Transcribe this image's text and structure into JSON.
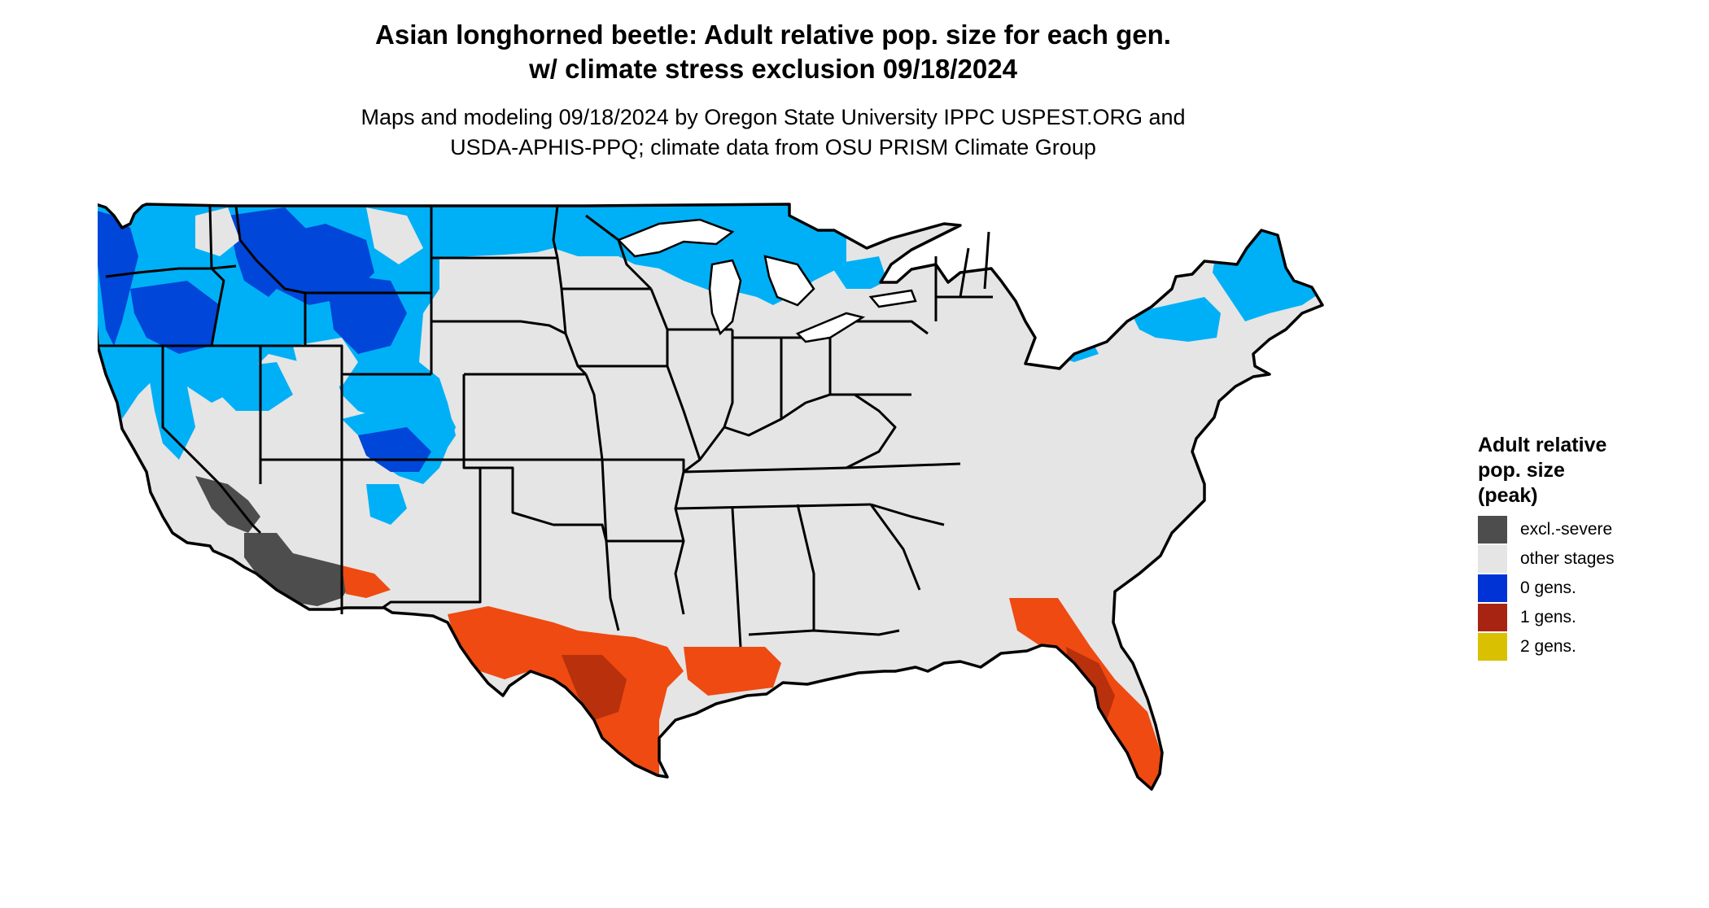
{
  "title": {
    "line1": "Asian longhorned beetle: Adult relative pop. size for each gen.",
    "line2": "w/ climate stress exclusion 09/18/2024"
  },
  "subtitle": {
    "line1": "Maps and modeling 09/18/2024 by Oregon State University IPPC USPEST.ORG and",
    "line2": "USDA-APHIS-PPQ; climate data from OSU PRISM Climate Group"
  },
  "legend": {
    "title_line1": "Adult relative",
    "title_line2": "pop. size",
    "title_line3": "(peak)",
    "items": [
      {
        "label": "excl.-severe",
        "color": "#4d4d4d"
      },
      {
        "label": "other stages",
        "color": "#e5e5e5"
      },
      {
        "label": "0 gens.",
        "color": "#0033d6"
      },
      {
        "label": "1 gens.",
        "color": "#a82412"
      },
      {
        "label": "2 gens.",
        "color": "#d9c000"
      }
    ]
  },
  "map_colors": {
    "background_land": "#e5e5e5",
    "cold_light": "#00b0f6",
    "cold_dark": "#0046d8",
    "warm": "#ee4a12",
    "warm_dark": "#b8300c",
    "excluded": "#4d4d4d",
    "border": "#000000"
  }
}
